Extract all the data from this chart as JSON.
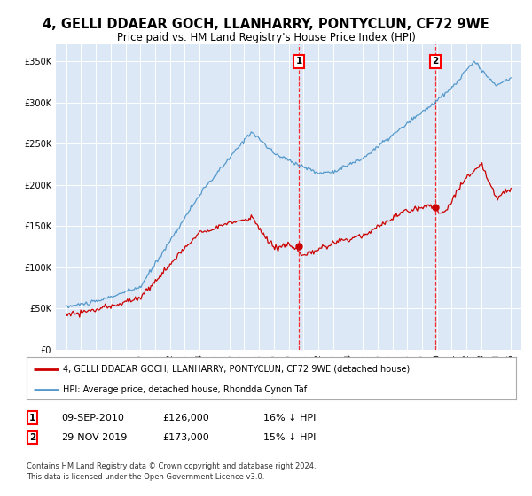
{
  "title": "4, GELLI DDAEAR GOCH, LLANHARRY, PONTYCLUN, CF72 9WE",
  "subtitle": "Price paid vs. HM Land Registry's House Price Index (HPI)",
  "legend_label_red": "4, GELLI DDAEAR GOCH, LLANHARRY, PONTYCLUN, CF72 9WE (detached house)",
  "legend_label_blue": "HPI: Average price, detached house, Rhondda Cynon Taf",
  "footer": "Contains HM Land Registry data © Crown copyright and database right 2024.\nThis data is licensed under the Open Government Licence v3.0.",
  "annotation1_date": "09-SEP-2010",
  "annotation1_price": "£126,000",
  "annotation1_hpi": "16% ↓ HPI",
  "annotation2_date": "29-NOV-2019",
  "annotation2_price": "£173,000",
  "annotation2_hpi": "15% ↓ HPI",
  "sale1_year": 2010.69,
  "sale1_price": 126000,
  "sale2_year": 2019.91,
  "sale2_price": 173000,
  "ylim_min": 0,
  "ylim_max": 370000,
  "plot_bg_color": "#dce8f5",
  "red_color": "#cc0000",
  "blue_color": "#5599cc"
}
